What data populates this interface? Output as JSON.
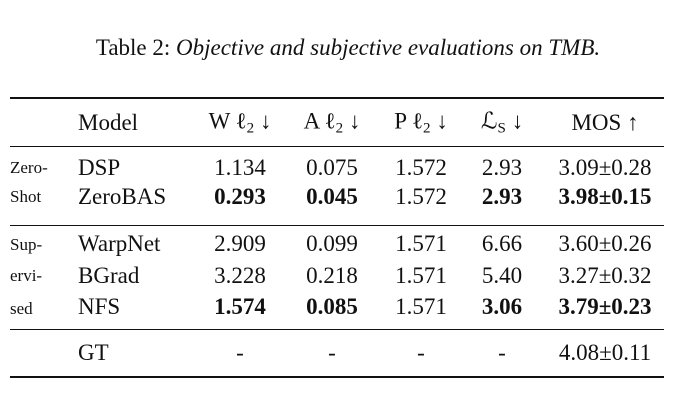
{
  "caption": {
    "label": "Table 2:",
    "text": "Objective and subjective evaluations on TMB."
  },
  "table": {
    "columns": [
      {
        "text": "Model"
      },
      {
        "text": "W ℓ",
        "sub": "2",
        "arrow": "↓"
      },
      {
        "text": "A ℓ",
        "sub": "2",
        "arrow": "↓"
      },
      {
        "text": "P ℓ",
        "sub": "2",
        "arrow": "↓"
      },
      {
        "text": "ℒ",
        "sub": "S",
        "arrow": "↓"
      },
      {
        "text": "MOS",
        "arrow": "↑"
      }
    ],
    "sections": [
      {
        "label_lines": [
          "Zero-",
          "Shot"
        ],
        "rows": [
          {
            "model": "DSP",
            "cells": [
              "1.134",
              "0.075",
              "1.572",
              "2.93",
              "3.09±0.28"
            ],
            "bold": [
              false,
              false,
              false,
              false,
              false
            ]
          },
          {
            "model": "ZeroBAS",
            "cells": [
              "0.293",
              "0.045",
              "1.572",
              "2.93",
              "3.98±0.15"
            ],
            "bold": [
              true,
              true,
              false,
              true,
              true
            ]
          }
        ]
      },
      {
        "label_lines": [
          "Sup-",
          "ervi-",
          "sed"
        ],
        "rows": [
          {
            "model": "WarpNet",
            "cells": [
              "2.909",
              "0.099",
              "1.571",
              "6.66",
              "3.60±0.26"
            ],
            "bold": [
              false,
              false,
              false,
              false,
              false
            ]
          },
          {
            "model": "BGrad",
            "cells": [
              "3.228",
              "0.218",
              "1.571",
              "5.40",
              "3.27±0.32"
            ],
            "bold": [
              false,
              false,
              false,
              false,
              false
            ]
          },
          {
            "model": "NFS",
            "cells": [
              "1.574",
              "0.085",
              "1.571",
              "3.06",
              "3.79±0.23"
            ],
            "bold": [
              true,
              true,
              false,
              true,
              true
            ]
          }
        ]
      },
      {
        "rows": [
          {
            "model": "GT",
            "cells": [
              "-",
              "-",
              "-",
              "-",
              "4.08±0.11"
            ],
            "bold": [
              false,
              false,
              false,
              false,
              false
            ]
          }
        ]
      }
    ]
  }
}
